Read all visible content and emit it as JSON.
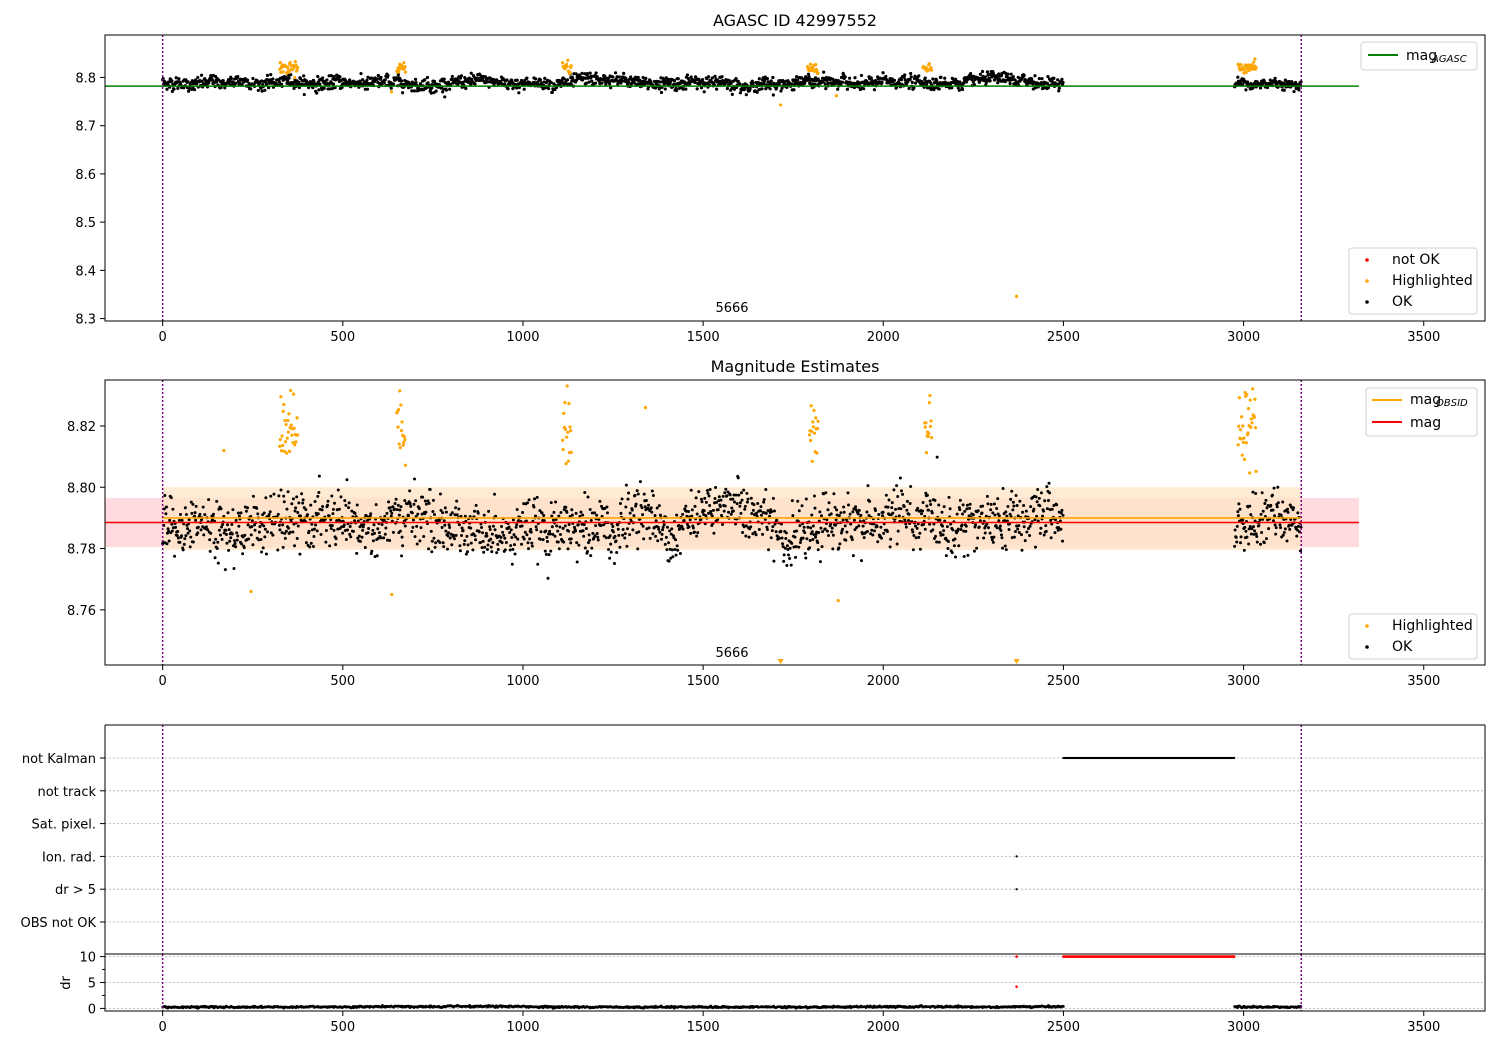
{
  "colors": {
    "ok": "#000000",
    "highlighted": "#ffa500",
    "not_ok": "#ff0000",
    "mag_agasc_line": "#008000",
    "mag_obsid_line": "#ffa500",
    "mag_line": "#ff0000",
    "vline": "#800080",
    "grid": "#b0b0b0",
    "band_orange": "#ffe4c4",
    "band_red": "#ffd1d6"
  },
  "shared_x": {
    "ticks": [
      0,
      500,
      1000,
      1500,
      2000,
      2500,
      3000,
      3500
    ],
    "tick_labels": [
      "0",
      "500",
      "1000",
      "1500",
      "2000",
      "2500",
      "3000",
      "3500"
    ],
    "xlim": [
      -160,
      3670
    ],
    "obsid_label": "5666",
    "obsid_boundaries": [
      0,
      3160
    ]
  },
  "chart_data": [
    {
      "type": "scatter",
      "title": "AGASC ID 42997552",
      "ylim": [
        8.295,
        8.888
      ],
      "yticks": [
        8.3,
        8.4,
        8.5,
        8.6,
        8.7,
        8.8
      ],
      "ytick_labels": [
        "8.3",
        "8.4",
        "8.5",
        "8.6",
        "8.7",
        "8.8"
      ],
      "legend_lines": [
        {
          "label": "mag",
          "sub": "AGASC"
        }
      ],
      "legend_points": [
        "not OK",
        "Highlighted",
        "OK"
      ],
      "mag_agasc": 8.782,
      "ok_segments": [
        {
          "start": 0,
          "end": 2500,
          "center": 8.789,
          "spread": 0.012
        },
        {
          "start": 2975,
          "end": 3160,
          "center": 8.788,
          "spread": 0.01
        }
      ],
      "highlight_clusters": [
        {
          "x0": 325,
          "x1": 375,
          "center": 8.82,
          "spread": 0.006
        },
        {
          "x0": 650,
          "x1": 675,
          "center": 8.821,
          "spread": 0.006
        },
        {
          "x0": 1110,
          "x1": 1135,
          "center": 8.822,
          "spread": 0.008
        },
        {
          "x0": 1790,
          "x1": 1820,
          "center": 8.818,
          "spread": 0.006
        },
        {
          "x0": 2110,
          "x1": 2135,
          "center": 8.818,
          "spread": 0.006
        },
        {
          "x0": 2985,
          "x1": 3035,
          "center": 8.822,
          "spread": 0.006
        }
      ],
      "highlight_points": [
        [
          1715,
          8.743
        ],
        [
          2370,
          8.346
        ],
        [
          635,
          8.77
        ],
        [
          1870,
          8.762
        ]
      ]
    },
    {
      "type": "scatter",
      "title": "Magnitude Estimates",
      "ylim": [
        8.742,
        8.835
      ],
      "yticks": [
        8.76,
        8.78,
        8.8,
        8.82
      ],
      "ytick_labels": [
        "8.76",
        "8.78",
        "8.80",
        "8.82"
      ],
      "legend_lines": [
        {
          "label": "mag",
          "sub": "OBSID"
        },
        {
          "label": "mag",
          "sub": ""
        }
      ],
      "legend_points": [
        "Highlighted",
        "OK"
      ],
      "mag_obsid": 8.79,
      "mag": 8.7885,
      "band_obsid": [
        8.7795,
        8.8
      ],
      "band_mag": [
        8.7805,
        8.7965
      ],
      "ok_segments": [
        {
          "start": 0,
          "end": 2500,
          "center": 8.788,
          "spread": 0.008
        },
        {
          "start": 2975,
          "end": 3160,
          "center": 8.787,
          "spread": 0.007
        }
      ],
      "highlight_clusters": [
        {
          "x0": 325,
          "x1": 375,
          "center": 8.82,
          "spread": 0.006
        },
        {
          "x0": 650,
          "x1": 675,
          "center": 8.82,
          "spread": 0.005
        },
        {
          "x0": 1110,
          "x1": 1135,
          "center": 8.82,
          "spread": 0.007
        },
        {
          "x0": 1795,
          "x1": 1820,
          "center": 8.818,
          "spread": 0.006
        },
        {
          "x0": 2115,
          "x1": 2135,
          "center": 8.818,
          "spread": 0.005
        },
        {
          "x0": 2985,
          "x1": 3035,
          "center": 8.82,
          "spread": 0.007
        }
      ],
      "highlight_points": [
        [
          170,
          8.812
        ],
        [
          245,
          8.766
        ],
        [
          636,
          8.765
        ],
        [
          1340,
          8.826
        ],
        [
          1875,
          8.763
        ]
      ],
      "clipped_markers": [
        1715,
        2370
      ]
    },
    {
      "type": "scatter",
      "title": "",
      "categories": [
        "not Kalman",
        "not track",
        "Sat. pixel.",
        "Ion. rad.",
        "dr > 5",
        "OBS not OK"
      ],
      "flags": {
        "not Kalman": [
          [
            2500,
            2975
          ]
        ],
        "not track": [],
        "Sat. pixel.": [],
        "Ion. rad.": [
          [
            2370,
            2370
          ]
        ],
        "dr > 5": [
          [
            2370,
            2370
          ]
        ],
        "OBS not OK": []
      }
    },
    {
      "type": "scatter",
      "title": "",
      "ylabel": "dr",
      "ylim": [
        -0.5,
        10.5
      ],
      "yticks": [
        0,
        5,
        10
      ],
      "ytick_labels": [
        "0",
        "5",
        "10"
      ],
      "ok_segments": [
        {
          "start": 0,
          "end": 2500,
          "center": 0.3,
          "spread": 0.15
        },
        {
          "start": 2975,
          "end": 3160,
          "center": 0.3,
          "spread": 0.15
        }
      ],
      "not_ok_range": [
        2500,
        2975
      ],
      "not_ok_value": 10,
      "not_ok_points": [
        [
          2370,
          4.2
        ],
        [
          2370,
          10
        ]
      ]
    }
  ]
}
